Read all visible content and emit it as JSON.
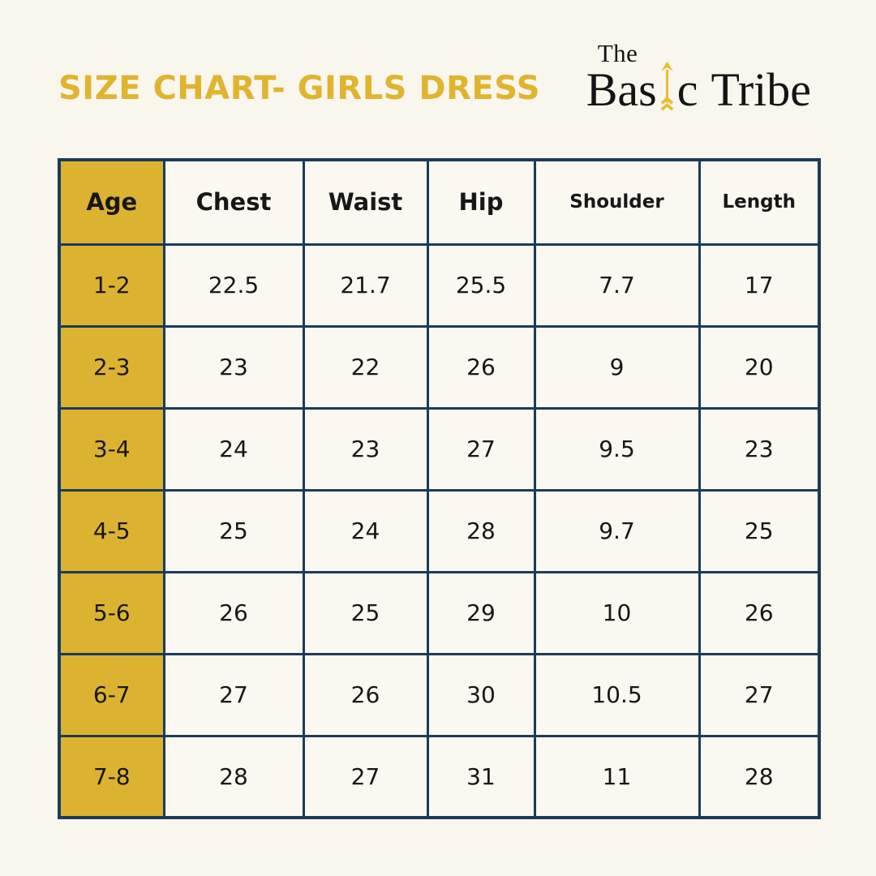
{
  "header": {
    "title": "SIZE CHART- GIRLS DRESS"
  },
  "logo": {
    "the": "The",
    "basic_prefix": "Bas",
    "basic_suffix": "c",
    "tribe": "Tribe",
    "arrow_icon": "up-arrow"
  },
  "colors": {
    "background": "#f9f6ee",
    "title_gold": "#e0b42d",
    "cell_gold": "#dcb331",
    "border_navy": "#1c3b58",
    "text": "#171717",
    "arrow_gold": "#e9bd2e"
  },
  "chart_data": {
    "type": "table",
    "title": "SIZE CHART- GIRLS DRESS",
    "columns": [
      "Age",
      "Chest",
      "Waist",
      "Hip",
      "Shoulder",
      "Length"
    ],
    "rows": [
      [
        "1-2",
        "22.5",
        "21.7",
        "25.5",
        "7.7",
        "17"
      ],
      [
        "2-3",
        "23",
        "22",
        "26",
        "9",
        "20"
      ],
      [
        "3-4",
        "24",
        "23",
        "27",
        "9.5",
        "23"
      ],
      [
        "4-5",
        "25",
        "24",
        "28",
        "9.7",
        "25"
      ],
      [
        "5-6",
        "26",
        "25",
        "29",
        "10",
        "26"
      ],
      [
        "6-7",
        "27",
        "26",
        "30",
        "10.5",
        "27"
      ],
      [
        "7-8",
        "28",
        "27",
        "31",
        "11",
        "28"
      ]
    ]
  }
}
